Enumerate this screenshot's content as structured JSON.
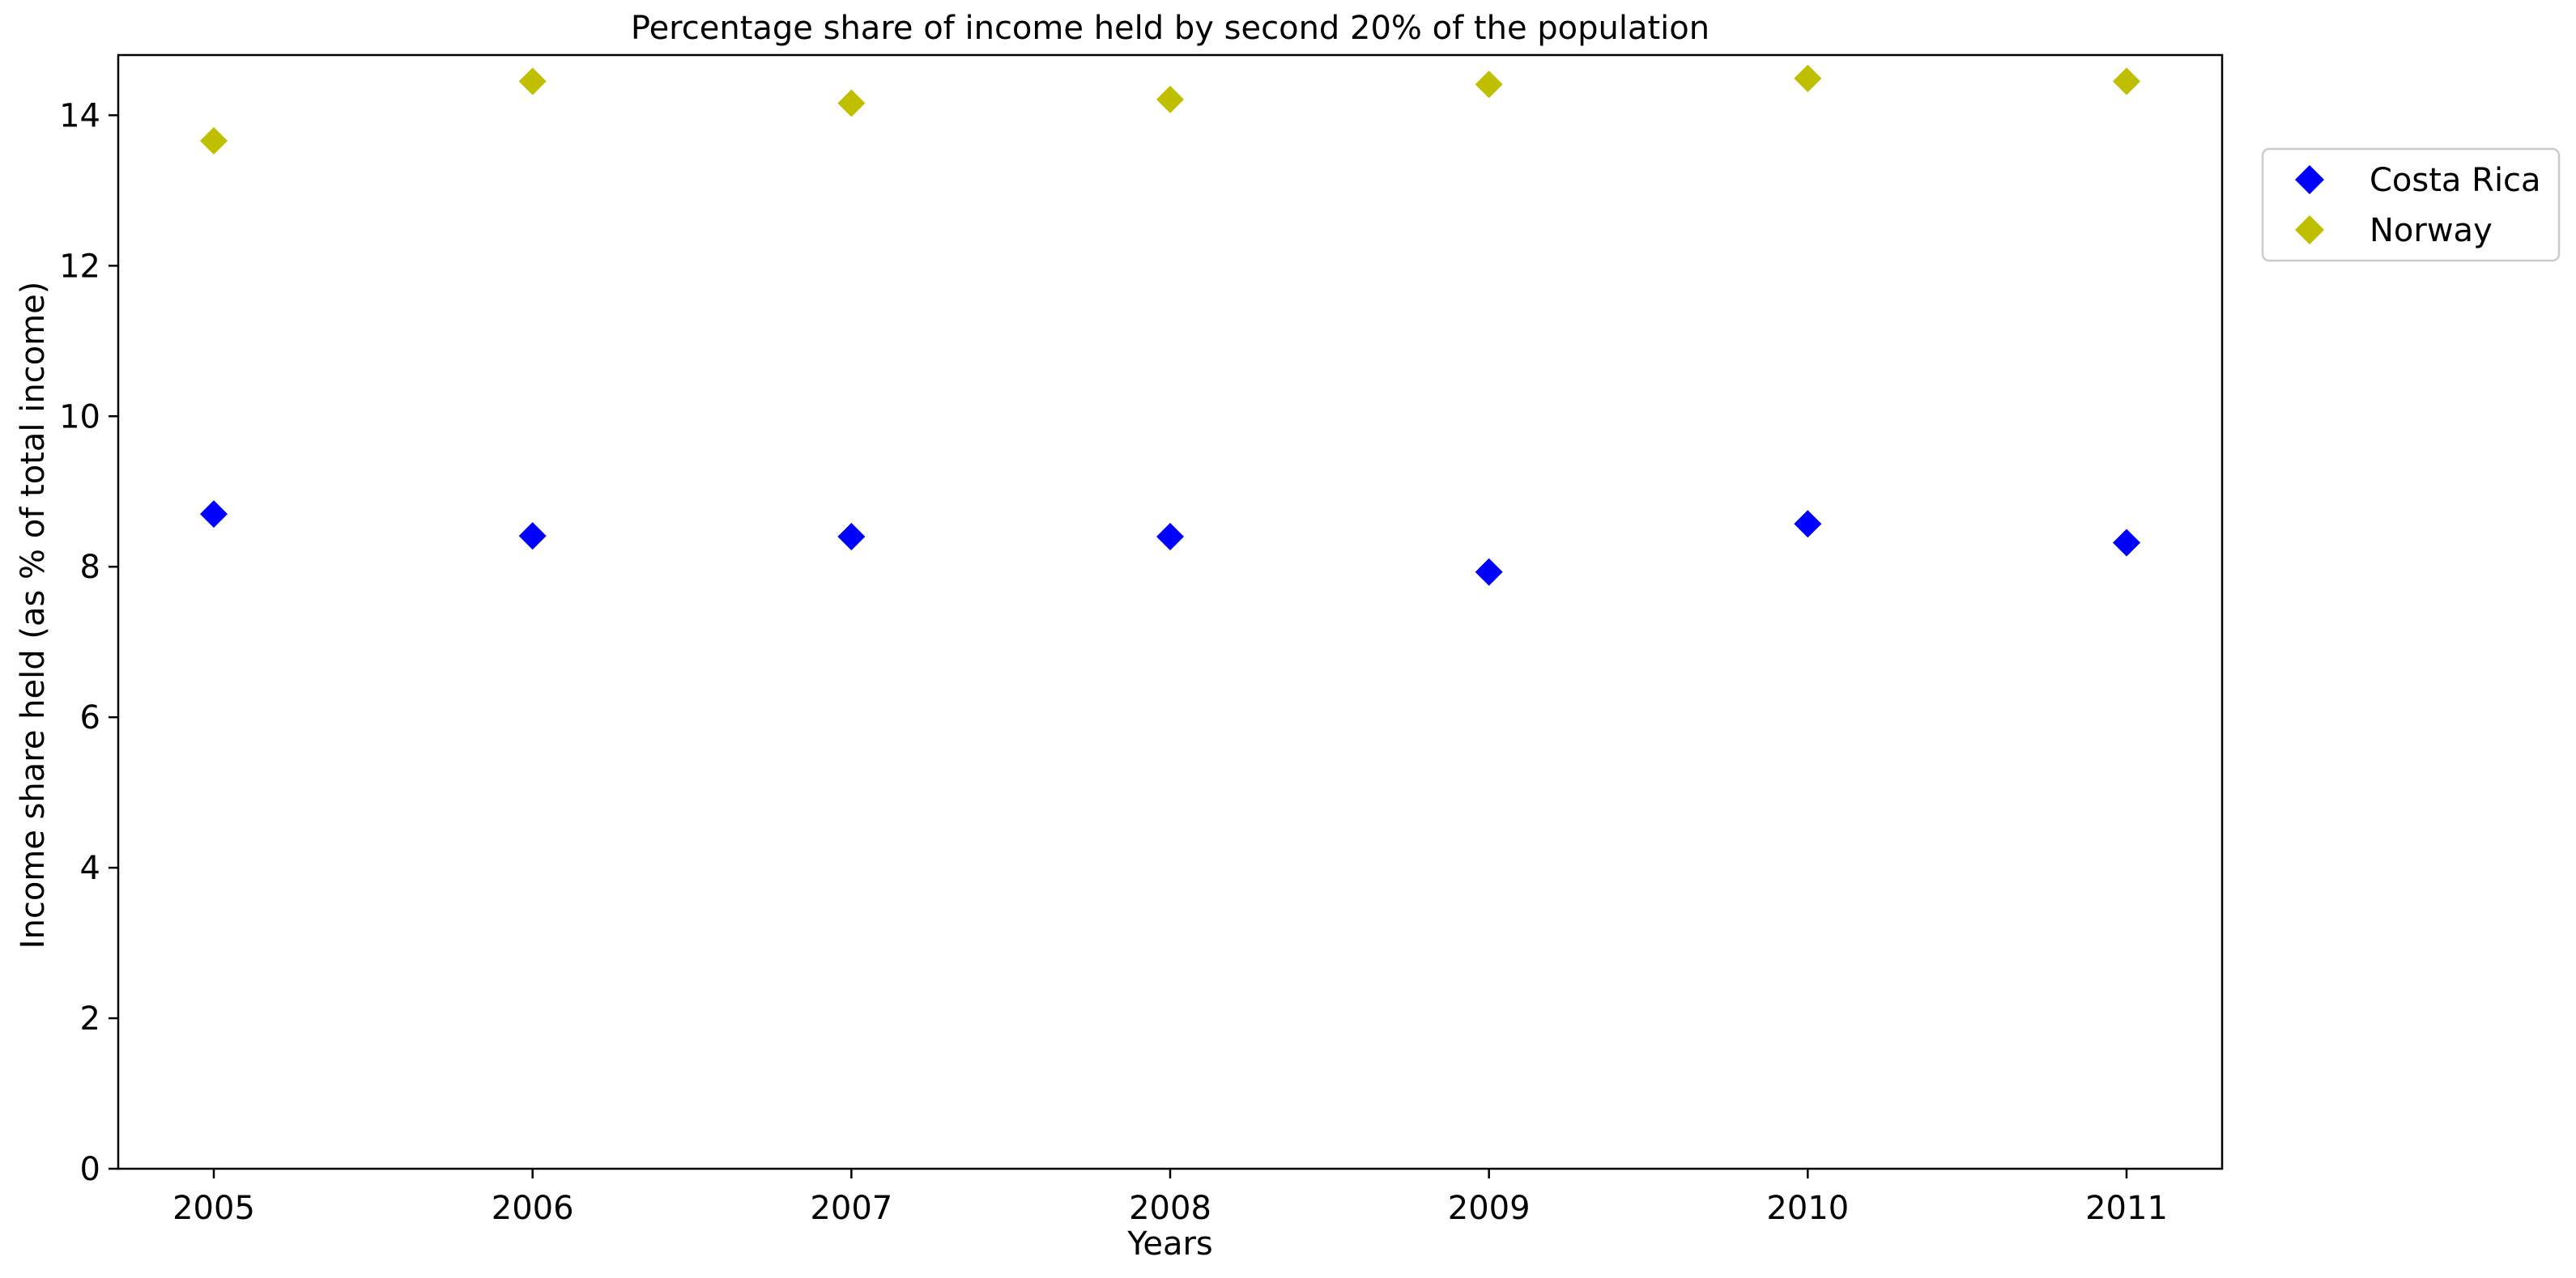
{
  "chart_data": {
    "type": "scatter",
    "title": "Percentage share of income held by second 20% of the population",
    "xlabel": "Years",
    "ylabel": "Income share held (as % of total income)",
    "x": [
      "2005",
      "2006",
      "2007",
      "2008",
      "2009",
      "2010",
      "2011"
    ],
    "ylim": [
      0,
      14.8
    ],
    "yticks": [
      0,
      2,
      4,
      6,
      8,
      10,
      12,
      14
    ],
    "grid": false,
    "legend_position": "upper-right-outside",
    "marker": "diamond",
    "series": [
      {
        "name": "Costa Rica",
        "color": "#0000ff",
        "values": [
          8.7,
          8.41,
          8.4,
          8.4,
          7.93,
          8.57,
          8.32
        ]
      },
      {
        "name": "Norway",
        "color": "#bfbf00",
        "values": [
          13.66,
          14.45,
          14.16,
          14.21,
          14.41,
          14.49,
          14.45
        ]
      }
    ]
  }
}
